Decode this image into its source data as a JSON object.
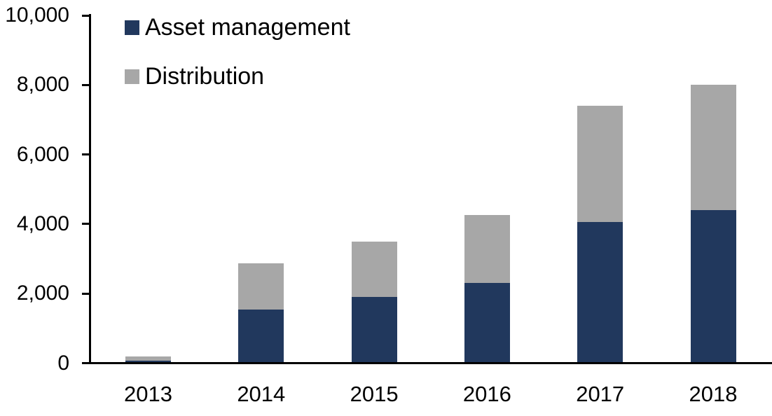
{
  "chart_data": {
    "type": "bar",
    "stacked": true,
    "title": "",
    "xlabel": "",
    "ylabel": "",
    "categories": [
      "2013",
      "2014",
      "2015",
      "2016",
      "2017",
      "2018"
    ],
    "series": [
      {
        "name": "Asset management",
        "color": "#21385D",
        "values": [
          80,
          1550,
          1900,
          2300,
          4050,
          4400
        ]
      },
      {
        "name": "Distribution",
        "color": "#A7A7A7",
        "values": [
          120,
          1320,
          1600,
          1950,
          3350,
          3600
        ]
      }
    ],
    "totals": [
      200,
      2870,
      3500,
      4250,
      7400,
      8000
    ],
    "ylim": [
      0,
      10000
    ],
    "ytick_step": 2000,
    "ytick_labels": [
      "0",
      "2,000",
      "4,000",
      "6,000",
      "8,000",
      "10,000"
    ],
    "grid": false,
    "legend_position": "top-left-inside",
    "axis_color": "#000000",
    "background_color": "#FFFFFF"
  }
}
